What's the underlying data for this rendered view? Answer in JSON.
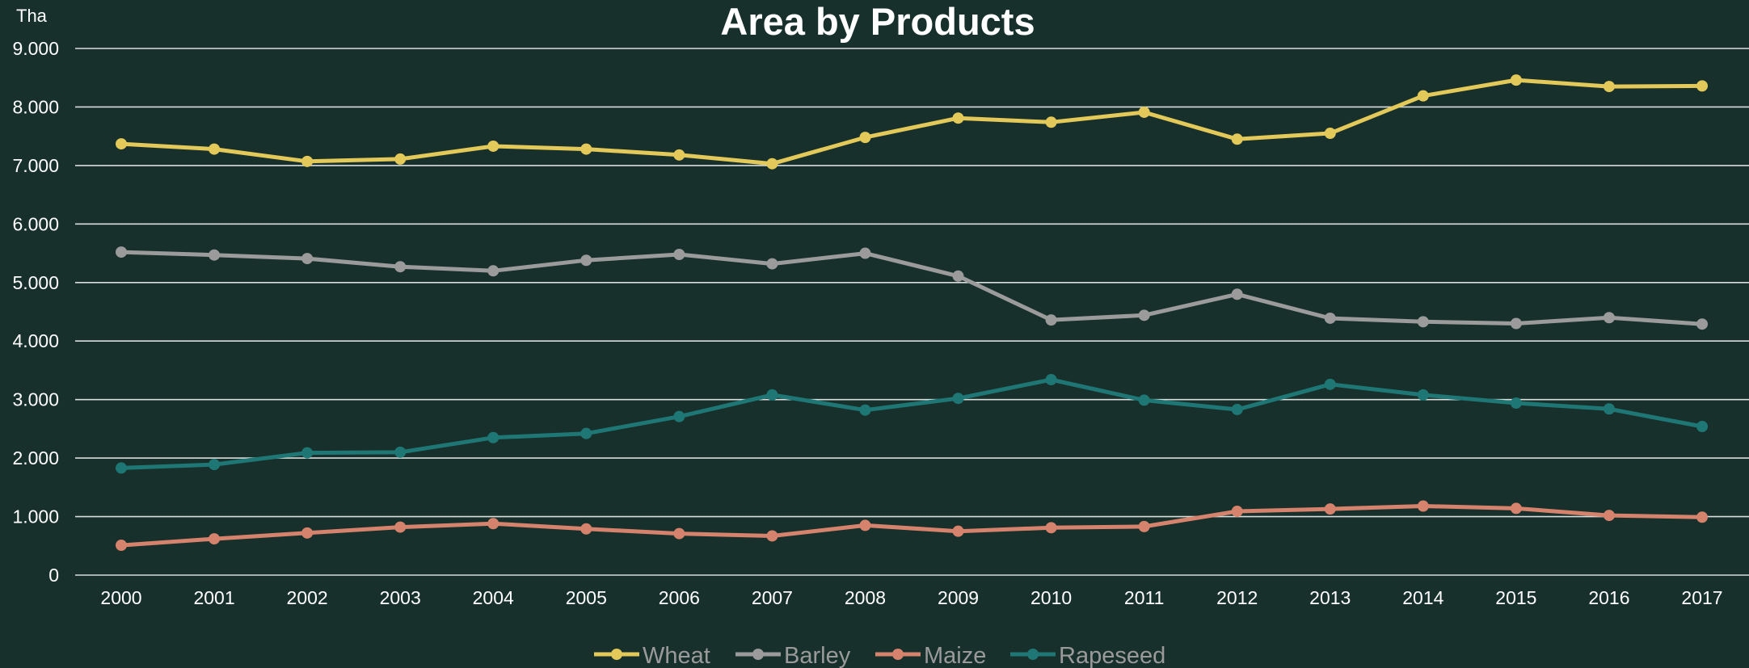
{
  "chart_data": {
    "type": "line",
    "title": "Area by Products",
    "ylabel": "Tha",
    "xlabel": "",
    "ylim": [
      0,
      9000
    ],
    "yticks": [
      "0",
      "1.000",
      "2.000",
      "3.000",
      "4.000",
      "5.000",
      "6.000",
      "7.000",
      "8.000",
      "9.000"
    ],
    "ytick_values": [
      0,
      1000,
      2000,
      3000,
      4000,
      5000,
      6000,
      7000,
      8000,
      9000
    ],
    "categories": [
      "2000",
      "2001",
      "2002",
      "2003",
      "2004",
      "2005",
      "2006",
      "2007",
      "2008",
      "2009",
      "2010",
      "2011",
      "2012",
      "2013",
      "2014",
      "2015",
      "2016",
      "2017"
    ],
    "grid": true,
    "legend_position": "bottom-center",
    "series": [
      {
        "name": "Wheat",
        "color": "#e2c95a",
        "values": [
          7370,
          7280,
          7070,
          7110,
          7330,
          7280,
          7180,
          7030,
          7480,
          7810,
          7740,
          7910,
          7450,
          7550,
          8190,
          8460,
          8350,
          8360
        ]
      },
      {
        "name": "Barley",
        "color": "#9b9b9b",
        "values": [
          5520,
          5470,
          5410,
          5270,
          5200,
          5380,
          5480,
          5320,
          5500,
          5110,
          4360,
          4440,
          4800,
          4390,
          4330,
          4300,
          4400,
          4290
        ]
      },
      {
        "name": "Maize",
        "color": "#d6836d",
        "values": [
          510,
          620,
          720,
          820,
          880,
          790,
          710,
          670,
          850,
          750,
          810,
          830,
          1090,
          1130,
          1180,
          1140,
          1020,
          990
        ]
      },
      {
        "name": "Rapeseed",
        "color": "#1f7775",
        "values": [
          1830,
          1890,
          2090,
          2100,
          2350,
          2420,
          2710,
          3080,
          2820,
          3020,
          3340,
          2990,
          2830,
          3260,
          3080,
          2940,
          2840,
          2540
        ]
      }
    ]
  }
}
